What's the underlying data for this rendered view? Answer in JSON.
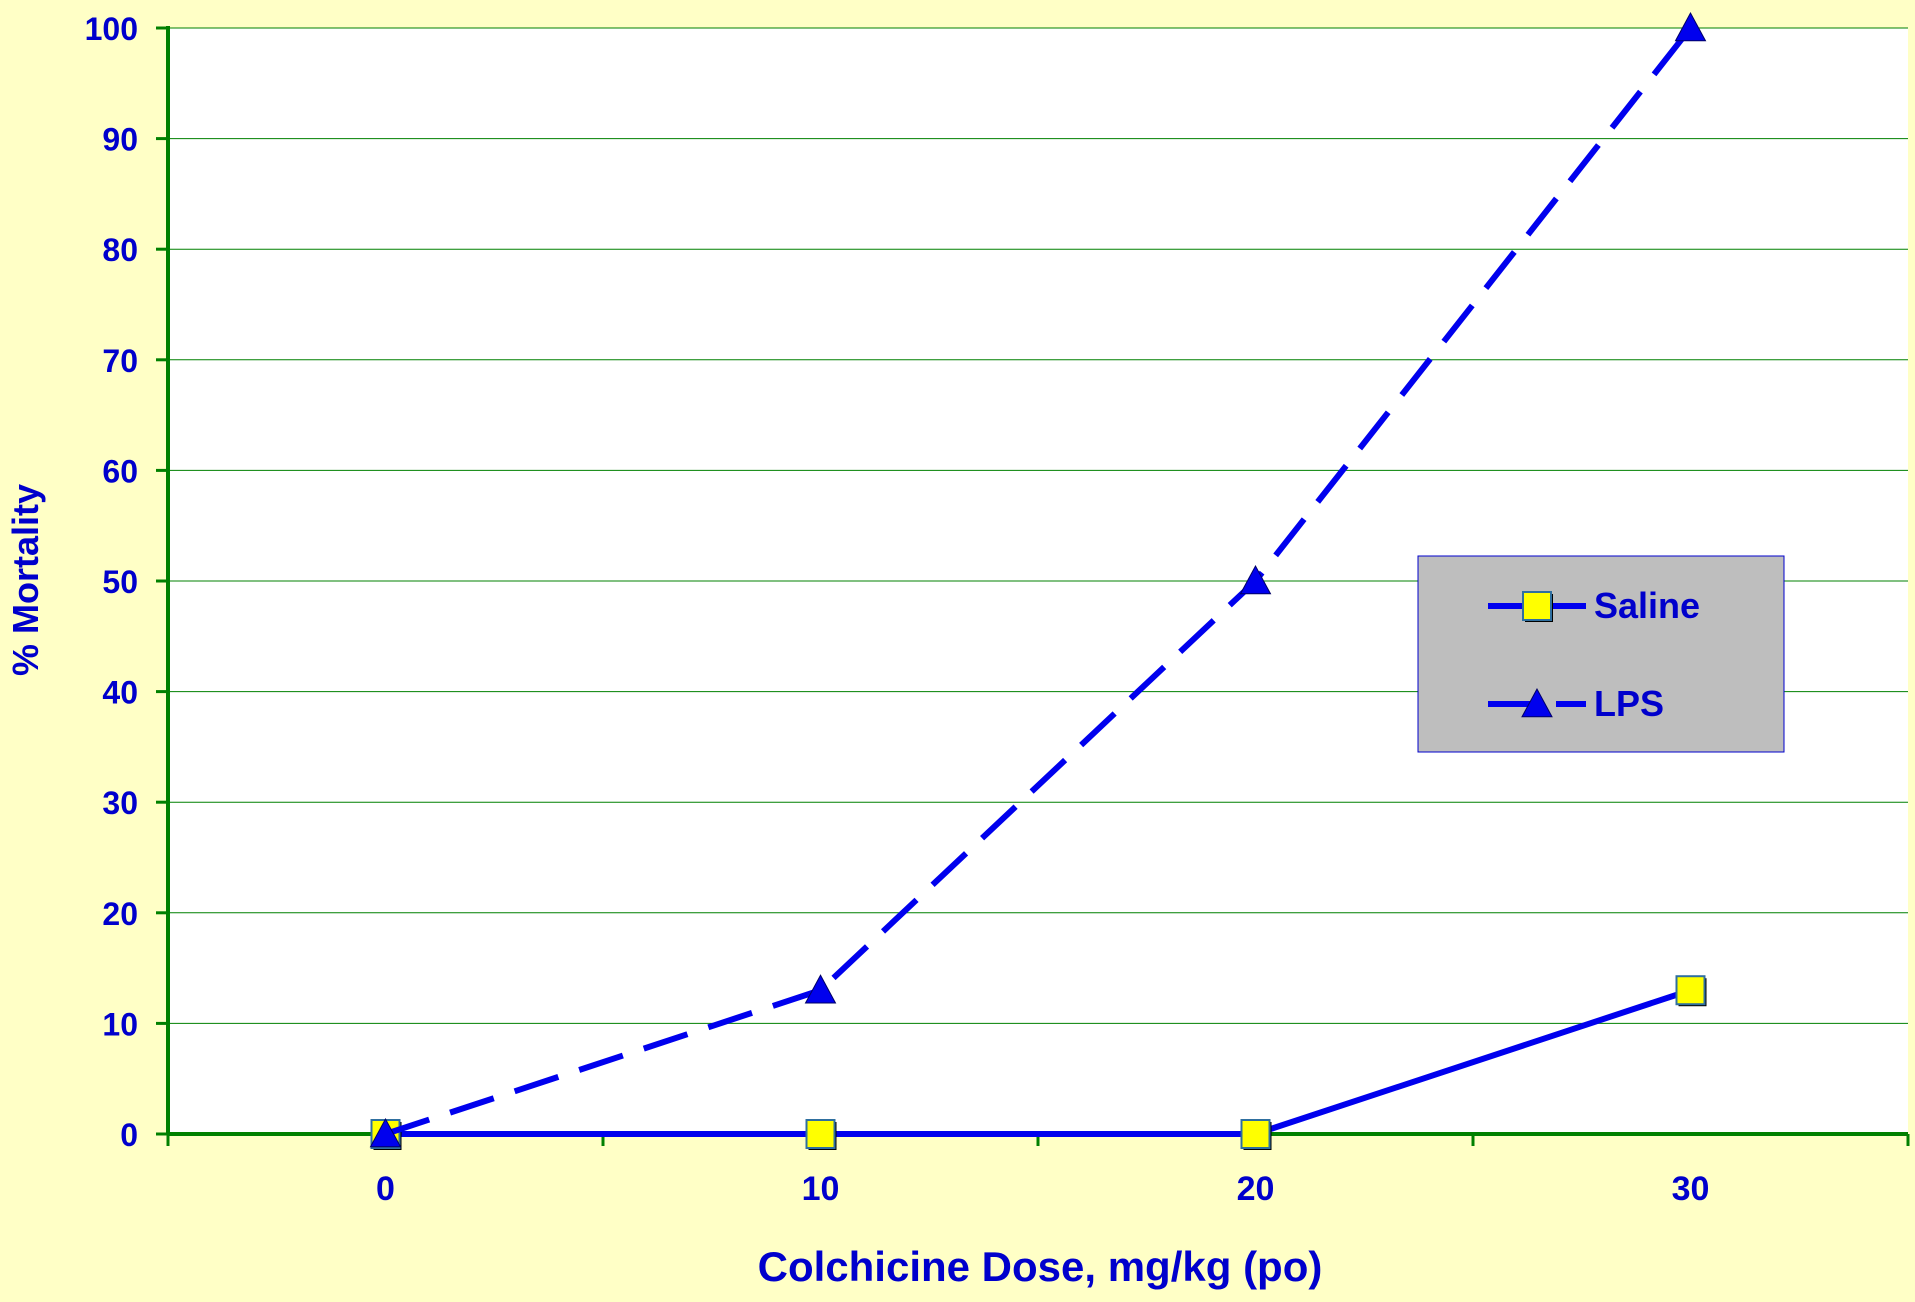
{
  "chart_data": {
    "type": "line",
    "title": "",
    "xlabel": "Colchicine Dose, mg/kg (po)",
    "ylabel": "% Mortality",
    "x": [
      0,
      10,
      20,
      30
    ],
    "x_tick_labels": [
      "0",
      "10",
      "20",
      "30"
    ],
    "xlim": [
      -5,
      35
    ],
    "ylim": [
      0,
      100
    ],
    "y_ticks": [
      0,
      10,
      20,
      30,
      40,
      50,
      60,
      70,
      80,
      90,
      100
    ],
    "grid": true,
    "legend_position": "right",
    "series": [
      {
        "name": "Saline",
        "values": [
          0,
          0,
          0,
          13
        ],
        "marker": "square",
        "line_style": "solid",
        "color": "#0000EE",
        "marker_color": "#FFFF00"
      },
      {
        "name": "LPS",
        "values": [
          0,
          13,
          50,
          100
        ],
        "marker": "triangle",
        "line_style": "dashed",
        "color": "#0000EE",
        "marker_color": "#0000EE"
      }
    ],
    "colors": {
      "background": "#FFFFC6",
      "plot_background": "#FFFFFF",
      "gridline": "#008000",
      "axis": "#008000",
      "text": "#0000CC",
      "legend_background": "#BEBEBE"
    }
  }
}
